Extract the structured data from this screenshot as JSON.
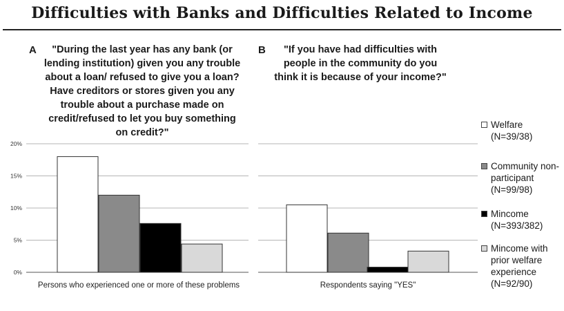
{
  "title": "Difficulties with Banks and Difficulties Related to Income",
  "chart_data": [
    {
      "type": "bar",
      "panel": "A",
      "question_lines": [
        "\"During the last year has any bank (or",
        "lending institution) given you any trouble",
        "about a loan/ refused to give you a loan?",
        "Have creditors or stores given you any",
        "trouble about a purchase made on",
        "credit/refused to let you buy something",
        "on credit?\""
      ],
      "categories": [
        "Persons who experienced one or more of these problems"
      ],
      "series": [
        {
          "name": "Welfare (N=39/38)",
          "values": [
            18
          ]
        },
        {
          "name": "Community non-participant (N=99/98)",
          "values": [
            12
          ]
        },
        {
          "name": "Mincome (N=393/382)",
          "values": [
            7.6
          ]
        },
        {
          "name": "Mincome with prior welfare experience (N=92/90)",
          "values": [
            4.4
          ]
        }
      ],
      "yticks": [
        "0%",
        "5%",
        "10%",
        "15%",
        "20%"
      ],
      "ylim": [
        0,
        20
      ],
      "grid": true
    },
    {
      "type": "bar",
      "panel": "B",
      "question_lines": [
        "\"If you have had difficulties with",
        "people in the community do you",
        "think it is because of your income?\""
      ],
      "categories": [
        "Respondents saying \"YES\""
      ],
      "series": [
        {
          "name": "Welfare (N=39/38)",
          "values": [
            10.5
          ]
        },
        {
          "name": "Community non-participant (N=99/98)",
          "values": [
            6.1
          ]
        },
        {
          "name": "Mincome (N=393/382)",
          "values": [
            0.8
          ]
        },
        {
          "name": "Mincome with prior welfare experience (N=92/90)",
          "values": [
            3.3
          ]
        }
      ],
      "ylim": [
        0,
        20
      ],
      "grid": true
    }
  ],
  "legend": [
    {
      "lines": [
        "Welfare",
        "(N=39/38)"
      ],
      "color": "#ffffff"
    },
    {
      "lines": [
        "Community non-",
        "participant",
        "(N=99/98)"
      ],
      "color": "#8a8a8a"
    },
    {
      "lines": [
        "Mincome",
        "(N=393/382)"
      ],
      "color": "#000000"
    },
    {
      "lines": [
        "Mincome with",
        "prior welfare",
        "experience",
        "(N=92/90)"
      ],
      "color": "#d9d9d9"
    }
  ]
}
